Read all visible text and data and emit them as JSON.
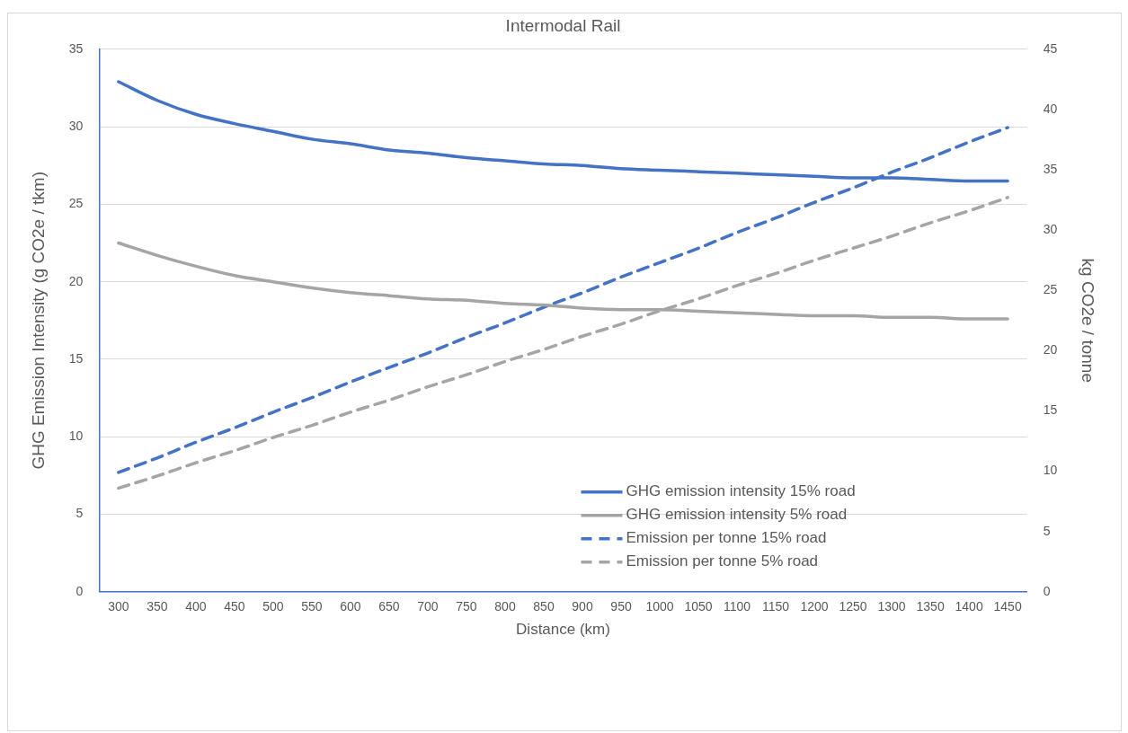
{
  "chart_data": {
    "type": "line",
    "title": "Intermodal Rail",
    "xlabel": "Distance (km)",
    "ylabel": "GHG Emission Intensity (g CO2e / tkm)",
    "y2label": "kg CO2e / tonne",
    "categories": [
      "300",
      "350",
      "400",
      "450",
      "500",
      "550",
      "600",
      "650",
      "700",
      "750",
      "800",
      "850",
      "900",
      "950",
      "1000",
      "1050",
      "1100",
      "1150",
      "1200",
      "1250",
      "1300",
      "1350",
      "1400",
      "1450"
    ],
    "series": [
      {
        "name": "GHG emission intensity 15% road",
        "color": "#4472c4",
        "line_style": "solid",
        "values": [
          32.9,
          31.7,
          30.8,
          30.2,
          29.7,
          29.2,
          28.9,
          28.5,
          28.3,
          28.0,
          27.8,
          27.6,
          27.5,
          27.3,
          27.2,
          27.1,
          27.0,
          26.9,
          26.8,
          26.7,
          26.7,
          26.6,
          26.5,
          26.5
        ]
      },
      {
        "name": "GHG emission intensity 5% road",
        "color": "#a5a5a5",
        "line_style": "solid",
        "values": [
          22.5,
          21.7,
          21.0,
          20.4,
          20.0,
          19.6,
          19.3,
          19.1,
          18.9,
          18.8,
          18.6,
          18.5,
          18.3,
          18.2,
          18.2,
          18.1,
          18.0,
          17.9,
          17.8,
          17.8,
          17.7,
          17.7,
          17.6,
          17.6
        ]
      },
      {
        "name": "Emission per tonne 15% road",
        "color": "#4472c4",
        "line_style": "dashed",
        "axis": "y2",
        "values": [
          9.9,
          11.1,
          12.4,
          13.6,
          14.9,
          16.1,
          17.4,
          18.6,
          19.8,
          21.1,
          22.3,
          23.6,
          24.8,
          26.1,
          27.3,
          28.5,
          29.8,
          31.0,
          32.3,
          33.5,
          34.8,
          36.0,
          37.3,
          38.5
        ]
      },
      {
        "name": "Emission per tonne 5% road",
        "color": "#a5a5a5",
        "line_style": "dashed",
        "axis": "y2",
        "values": [
          8.6,
          9.6,
          10.7,
          11.7,
          12.8,
          13.8,
          14.9,
          15.9,
          17.0,
          18.0,
          19.1,
          20.1,
          21.2,
          22.2,
          23.3,
          24.3,
          25.4,
          26.4,
          27.5,
          28.5,
          29.5,
          30.6,
          31.6,
          32.7
        ]
      }
    ],
    "ylim": [
      0,
      35
    ],
    "yticks": [
      0,
      5,
      10,
      15,
      20,
      25,
      30,
      35
    ],
    "y2lim": [
      0,
      45
    ],
    "y2ticks": [
      0,
      5,
      10,
      15,
      20,
      25,
      30,
      35,
      40,
      45
    ],
    "grid": "y",
    "legend": "bottom",
    "marker": "none"
  }
}
